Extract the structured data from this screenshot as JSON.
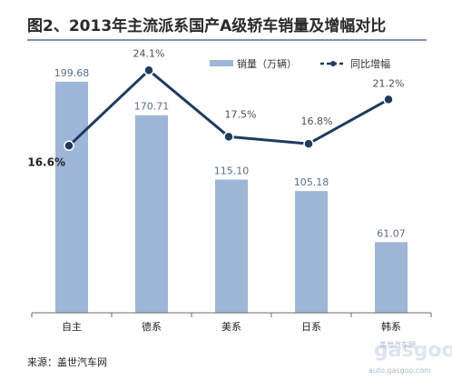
{
  "chart_data": {
    "type": "bar",
    "title": "图2、2013年主流派系国产A级轿车销量及增幅对比",
    "categories": [
      "自主",
      "德系",
      "美系",
      "日系",
      "韩系"
    ],
    "series": [
      {
        "name": "销量（万辆）",
        "type": "bar",
        "axis": "left",
        "values": [
          199.68,
          170.71,
          115.1,
          105.18,
          61.07
        ],
        "labels": [
          "199.68",
          "170.71",
          "115.10",
          "105.18",
          "61.07"
        ],
        "color": "#9eb6d8"
      },
      {
        "name": "同比增幅",
        "type": "line",
        "axis": "right",
        "values": [
          16.6,
          24.1,
          17.5,
          16.8,
          21.2
        ],
        "labels": [
          "16.6%",
          "24.1%",
          "17.5%",
          "16.8%",
          "21.2%"
        ],
        "color": "#1f3b61"
      }
    ],
    "ylim_left": [
      0,
      220
    ],
    "ylim_right": [
      0,
      30
    ],
    "grid": false,
    "legend_position": "top-right"
  },
  "source": "来源：盖世汽车网",
  "watermark": {
    "logo": "gasgoo",
    "cn": "盖世汽车网",
    "url": "auto.gasgoo.com"
  }
}
